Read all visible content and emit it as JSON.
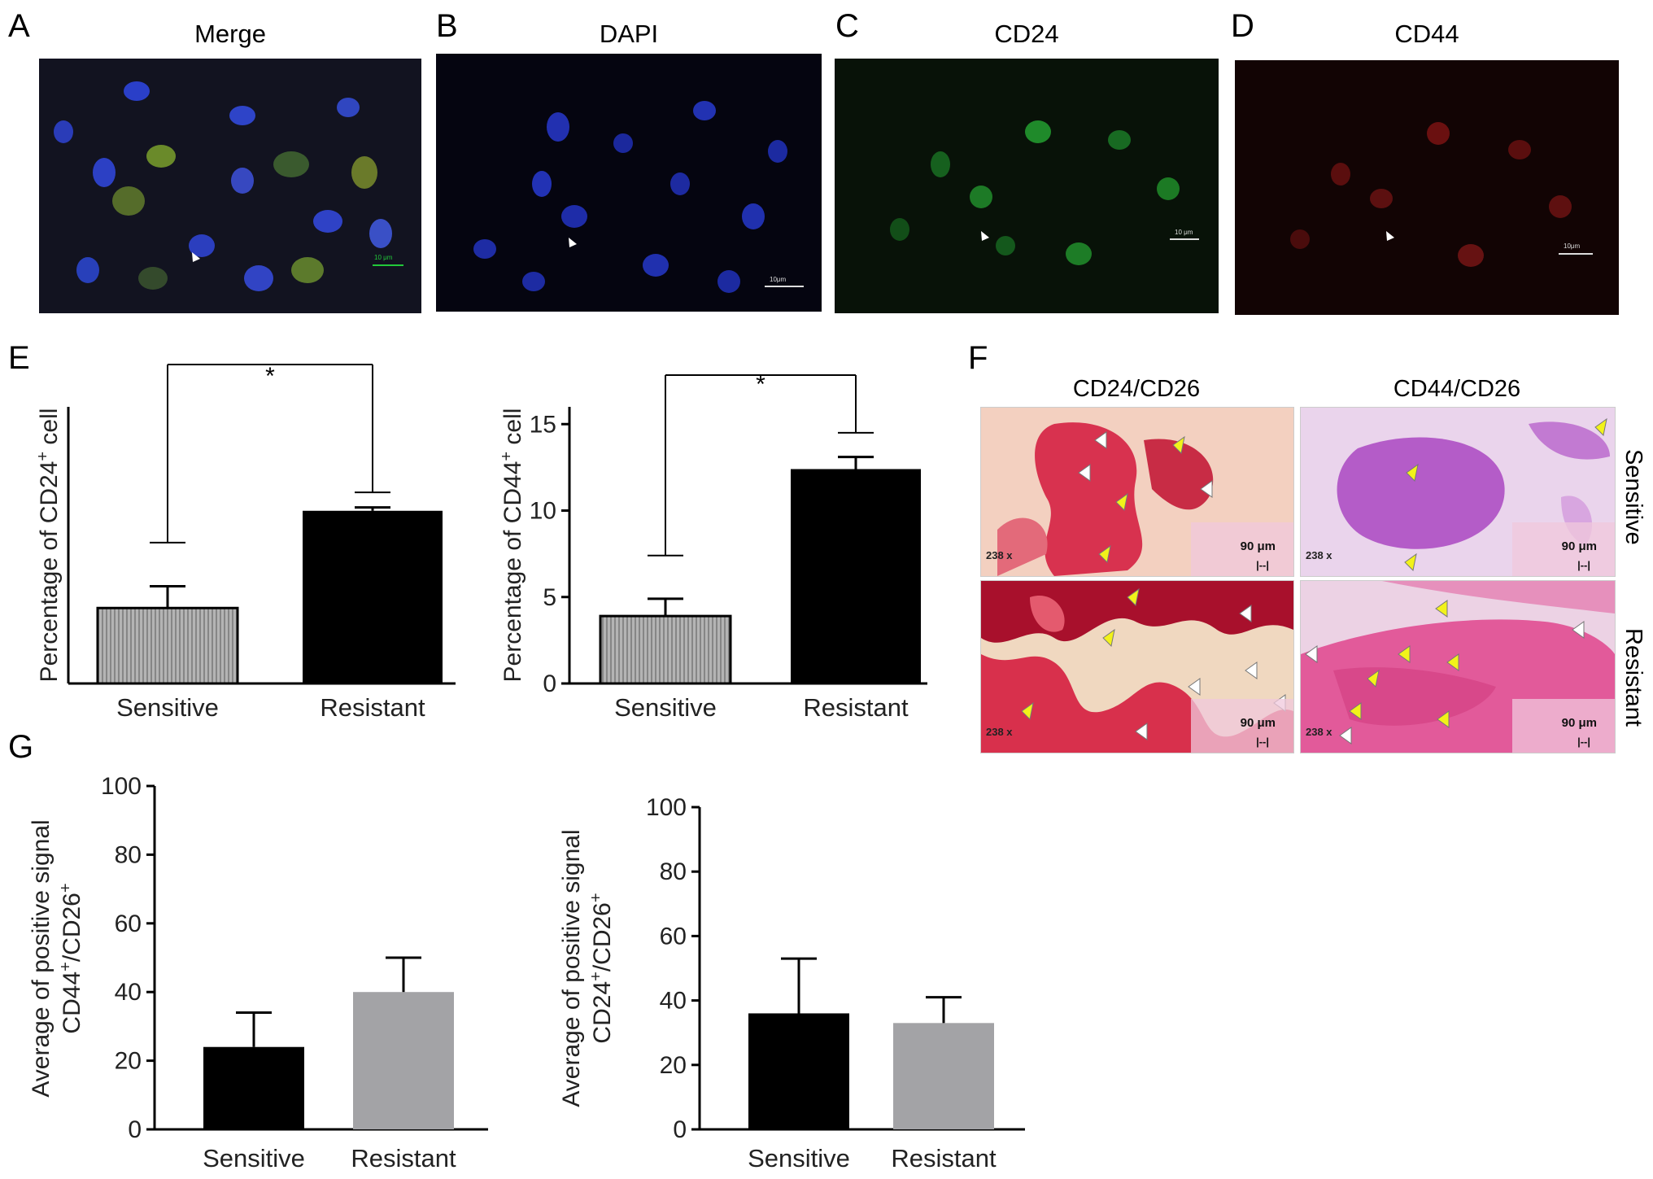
{
  "panels": {
    "A": {
      "letter": "A",
      "title": "Merge",
      "scale": "10 μm"
    },
    "B": {
      "letter": "B",
      "title": "DAPI",
      "scale": "10μm"
    },
    "C": {
      "letter": "C",
      "title": "CD24",
      "scale": "10 μm"
    },
    "D": {
      "letter": "D",
      "title": "CD44",
      "scale": "10μm"
    },
    "E": {
      "letter": "E"
    },
    "F": {
      "letter": "F"
    },
    "G": {
      "letter": "G"
    }
  },
  "he_panel": {
    "col_titles": [
      "CD24/CD26",
      "CD44/CD26"
    ],
    "row_labels": [
      "Sensitive",
      "Resistant"
    ],
    "magnification": "238 x",
    "scale_label": "90 μm",
    "scale_bar": "|--|",
    "colors": {
      "cd24": "#d8324f",
      "cd44": "#b45cc8",
      "arrow_yellow": "#f2f21a",
      "arrow_white": "#ffffff"
    }
  },
  "chart_data": [
    {
      "id": "E-left",
      "type": "bar",
      "categories": [
        "Sensitive",
        "Resistant"
      ],
      "values": [
        4.5,
        10.3
      ],
      "errors": [
        1.3,
        0.2
      ],
      "upper_bars": [
        8.4,
        11.4
      ],
      "ylabel": "Percentage of CD24+ cell",
      "ylim": [
        0,
        16.5
      ],
      "ticks": [],
      "significance": "*",
      "colors": [
        "#a8a8a8",
        "#000000"
      ],
      "hatched": [
        true,
        false
      ]
    },
    {
      "id": "E-right",
      "type": "bar",
      "categories": [
        "Sensitive",
        "Resistant"
      ],
      "values": [
        3.9,
        12.4
      ],
      "errors": [
        1.0,
        0.7
      ],
      "upper_bars": [
        7.4,
        14.5
      ],
      "ylabel": "Percentage of CD44+ cell",
      "ylim": [
        0,
        16
      ],
      "ticks": [
        0,
        5,
        10,
        15
      ],
      "significance": "*",
      "colors": [
        "#a8a8a8",
        "#000000"
      ],
      "hatched": [
        true,
        false
      ]
    },
    {
      "id": "G-left",
      "type": "bar",
      "categories": [
        "Sensitive",
        "Resistant"
      ],
      "values": [
        24,
        40
      ],
      "errors": [
        10,
        10
      ],
      "ylabel_lines": [
        "Average of positive signal",
        "CD44+/CD26+"
      ],
      "ylim": [
        0,
        100
      ],
      "ticks": [
        0,
        20,
        40,
        60,
        80,
        100
      ],
      "colors": [
        "#000000",
        "#a3a3a6"
      ],
      "hatched": [
        false,
        false
      ]
    },
    {
      "id": "G-right",
      "type": "bar",
      "categories": [
        "Sensitive",
        "Resistant"
      ],
      "values": [
        36,
        33
      ],
      "errors": [
        17,
        8
      ],
      "ylabel_lines": [
        "Average of positive signal",
        "CD24+/CD26+"
      ],
      "ylim": [
        0,
        100
      ],
      "ticks": [
        0,
        20,
        40,
        60,
        80,
        100
      ],
      "colors": [
        "#000000",
        "#a3a3a6"
      ],
      "hatched": [
        false,
        false
      ]
    }
  ]
}
